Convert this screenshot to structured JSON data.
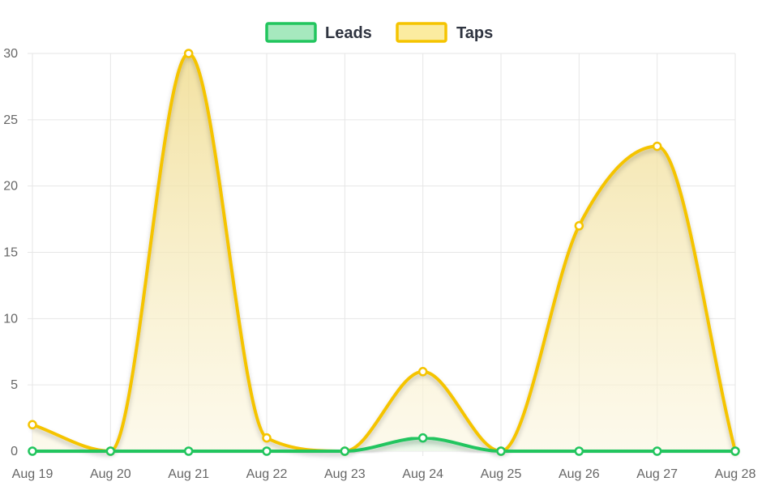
{
  "chart_data": {
    "type": "area",
    "categories": [
      "Aug 19",
      "Aug 20",
      "Aug 21",
      "Aug 22",
      "Aug 23",
      "Aug 24",
      "Aug 25",
      "Aug 26",
      "Aug 27",
      "Aug 28"
    ],
    "series": [
      {
        "name": "Leads",
        "values": [
          0,
          0,
          0,
          0,
          0,
          1,
          0,
          0,
          0,
          0
        ],
        "color": "#22c55e",
        "fill": "#a6e9be"
      },
      {
        "name": "Taps",
        "values": [
          2,
          0,
          30,
          1,
          0,
          6,
          0,
          17,
          23,
          0
        ],
        "color": "#f5c400",
        "fill": "#fbeca0"
      }
    ],
    "title": "",
    "xlabel": "",
    "ylabel": "",
    "ylim": [
      0,
      30
    ],
    "yticks": [
      "0",
      "5",
      "10",
      "15",
      "20",
      "25",
      "30"
    ],
    "grid": true,
    "legend_position": "top-center",
    "smooth": true
  }
}
